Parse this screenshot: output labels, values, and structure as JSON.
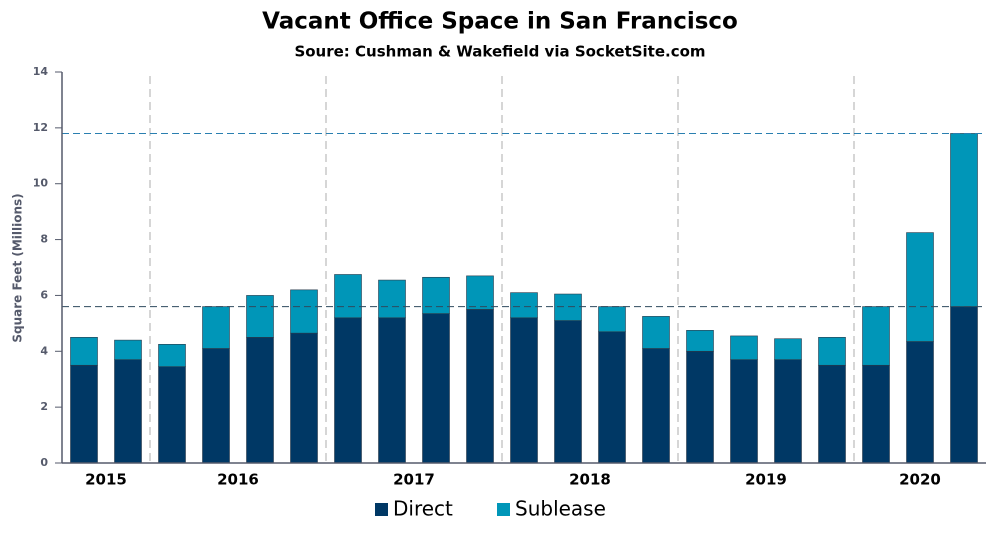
{
  "chart_data": {
    "type": "stacked_bar",
    "title": "Vacant Office Space in San Francisco",
    "subtitle": "Soure: Cushman & Wakefield via SocketSite.com",
    "y_label": "Square Feet (Millions)",
    "categories": [
      "2015",
      "2015",
      "2016",
      "2016",
      "2016",
      "2016",
      "2017",
      "2017",
      "2017",
      "2017",
      "2018",
      "2018",
      "2018",
      "2018",
      "2019",
      "2019",
      "2019",
      "2019",
      "2020",
      "2020",
      "2020"
    ],
    "series": [
      {
        "name": "Direct",
        "color": "#003865",
        "values": [
          3.5,
          3.7,
          3.45,
          4.1,
          4.5,
          4.65,
          5.2,
          5.2,
          5.35,
          5.5,
          5.2,
          5.1,
          4.7,
          4.1,
          4.0,
          3.7,
          3.7,
          3.5,
          3.5,
          4.35,
          5.6
        ]
      },
      {
        "name": "Sublease",
        "color": "#0096b8",
        "values": [
          1.0,
          0.7,
          0.8,
          1.5,
          1.5,
          1.55,
          1.55,
          1.35,
          1.3,
          1.2,
          0.9,
          0.95,
          0.9,
          1.15,
          0.75,
          0.85,
          0.75,
          1.0,
          2.1,
          3.9,
          6.2
        ]
      }
    ],
    "reference_lines": [
      5.6,
      11.8
    ],
    "ylim": [
      0,
      14
    ],
    "yticks": [
      0,
      2,
      4,
      6,
      8,
      10,
      12,
      14
    ]
  }
}
